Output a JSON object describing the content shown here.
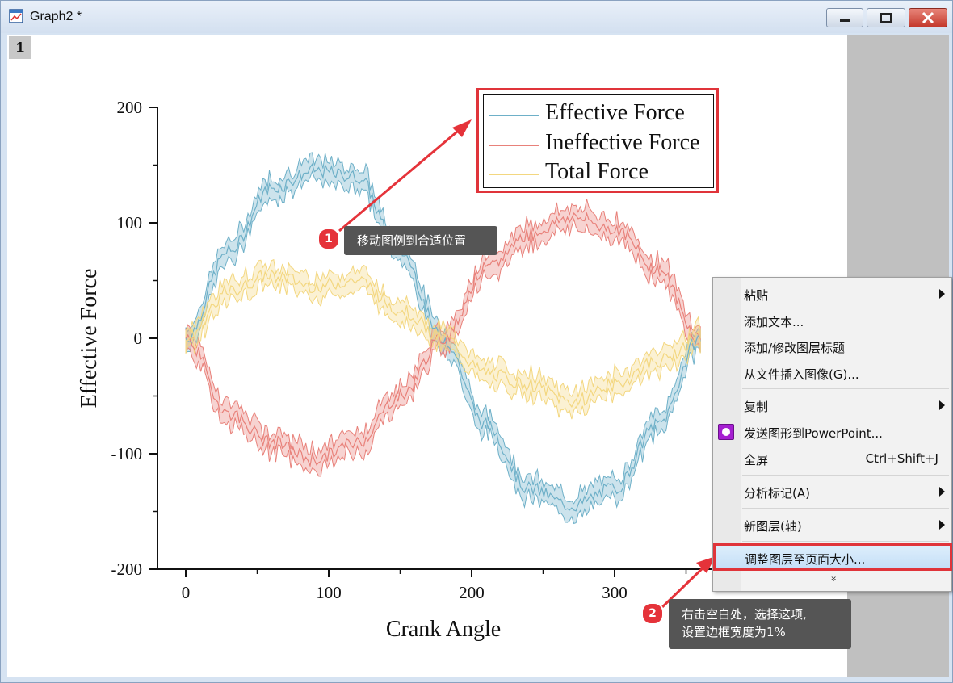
{
  "window": {
    "title": "Graph2 *",
    "layer_number": "1"
  },
  "legend": {
    "items": [
      {
        "label": "Effective Force",
        "color": "#6eb0c8"
      },
      {
        "label": "Ineffective Force",
        "color": "#e8817a"
      },
      {
        "label": "Total Force",
        "color": "#f3d780"
      }
    ]
  },
  "chart_data": {
    "type": "line",
    "xlabel": "Crank Angle",
    "ylabel": "Effective Force",
    "xlim": [
      -20,
      370
    ],
    "ylim": [
      -200,
      200
    ],
    "xticks": [
      0,
      100,
      200,
      300
    ],
    "yticks": [
      200,
      100,
      0,
      -100,
      -200
    ],
    "band_width_y": 15,
    "series": [
      {
        "name": "Effective Force",
        "color": "#6eb0c8",
        "x": [
          0,
          30,
          60,
          90,
          120,
          150,
          180,
          210,
          240,
          270,
          300,
          330,
          360
        ],
        "y": [
          0,
          75,
          130,
          145,
          140,
          75,
          0,
          -75,
          -130,
          -145,
          -130,
          -75,
          0
        ]
      },
      {
        "name": "Ineffective Force",
        "color": "#e8817a",
        "x": [
          0,
          30,
          60,
          90,
          120,
          150,
          180,
          210,
          240,
          270,
          300,
          330,
          360
        ],
        "y": [
          0,
          -65,
          -90,
          -105,
          -90,
          -50,
          0,
          60,
          90,
          105,
          95,
          60,
          0
        ]
      },
      {
        "name": "Total Force",
        "color": "#f3d780",
        "x": [
          0,
          30,
          60,
          90,
          120,
          150,
          180,
          210,
          240,
          270,
          300,
          330,
          360
        ],
        "y": [
          0,
          40,
          55,
          45,
          50,
          25,
          0,
          -30,
          -40,
          -55,
          -40,
          -20,
          0
        ]
      }
    ]
  },
  "context_menu": {
    "items": [
      {
        "label": "粘贴",
        "submenu": true
      },
      {
        "label": "添加文本..."
      },
      {
        "label": "添加/修改图层标题"
      },
      {
        "label": "从文件插入图像(G)..."
      },
      {
        "label": "复制",
        "submenu": true
      },
      {
        "label": "发送图形到PowerPoint...",
        "icon": "powerpoint-icon"
      },
      {
        "label": "全屏",
        "shortcut": "Ctrl+Shift+J"
      },
      {
        "label": "分析标记(A)",
        "submenu": true
      },
      {
        "label": "新图层(轴)",
        "submenu": true
      },
      {
        "label": "调整图层至页面大小..."
      }
    ],
    "more_glyph": "»"
  },
  "annotations": {
    "step1_number": "1",
    "step1_text": "移动图例到合适位置",
    "step2_number": "2",
    "step2_line1": "右击空白处，选择这项,",
    "step2_line2": "设置边框宽度为1%",
    "accent_color": "#e5333a"
  }
}
